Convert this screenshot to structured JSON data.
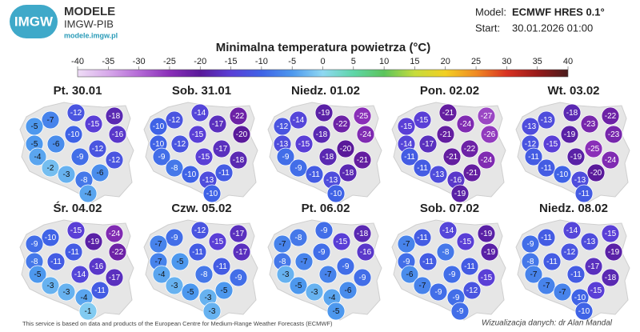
{
  "header": {
    "logo_text": "IMGW",
    "brand": "MODELE",
    "org": "IMGW-PIB",
    "url": "modele.imgw.pl",
    "model_label": "Model:",
    "model": "ECMWF HRES 0.1°",
    "start_label": "Start:",
    "start": "30.01.2026 01:00"
  },
  "chart_data": {
    "type": "map",
    "title": "Minimalna temperatura powietrza (°C)",
    "colorbar": {
      "ticks": [
        -40,
        -35,
        -30,
        -25,
        -20,
        -15,
        -10,
        -5,
        0,
        5,
        10,
        15,
        20,
        25,
        30,
        35,
        40
      ],
      "colors": [
        "#eedcf6",
        "#d7a9ea",
        "#b46ad6",
        "#8a2fb8",
        "#5a1a9a",
        "#5a3fd6",
        "#3f63e6",
        "#4d98ee",
        "#8fd8f2",
        "#5fd6a8",
        "#5cc45c",
        "#c6dc3c",
        "#f2cf22",
        "#f08a22",
        "#d83222",
        "#981a1a",
        "#4a1c1c"
      ]
    },
    "panels": [
      {
        "label": "Pt. 30.01",
        "values": [
          -7,
          -12,
          -18,
          -5,
          -15,
          -16,
          -10,
          -5,
          -6,
          -12,
          -4,
          -9,
          -12,
          -2,
          -3,
          -8,
          -6,
          -4
        ]
      },
      {
        "label": "Sob. 31.01",
        "values": [
          -12,
          -14,
          -22,
          -10,
          -17,
          -20,
          -15,
          -10,
          -12,
          -17,
          -9,
          -15,
          -18,
          -8,
          -10,
          -13,
          -11,
          -10
        ]
      },
      {
        "label": "Niedz. 01.02",
        "values": [
          -14,
          -19,
          -25,
          -12,
          -22,
          -24,
          -18,
          -13,
          -15,
          -20,
          -9,
          -18,
          -21,
          -9,
          -11,
          -13,
          -18,
          -10
        ]
      },
      {
        "label": "Pon. 02.02",
        "values": [
          -15,
          -21,
          -27,
          -15,
          -24,
          -26,
          -21,
          -14,
          -17,
          -22,
          -11,
          -21,
          -24,
          -11,
          -13,
          -16,
          -21,
          -19
        ]
      },
      {
        "label": "Wt. 03.02",
        "values": [
          -13,
          -18,
          -22,
          -13,
          -23,
          -23,
          -19,
          -12,
          -15,
          -25,
          -11,
          -19,
          -24,
          -11,
          -10,
          -13,
          -20,
          -11
        ]
      },
      {
        "label": "Śr. 04.02",
        "values": [
          -10,
          -15,
          -24,
          -9,
          -19,
          -22,
          -11,
          -8,
          -11,
          -16,
          -5,
          -14,
          -17,
          -3,
          -3,
          -4,
          -11,
          -1
        ]
      },
      {
        "label": "Czw. 05.02",
        "values": [
          -9,
          -12,
          -17,
          -7,
          -15,
          -17,
          -11,
          -7,
          -5,
          -11,
          -4,
          -8,
          -9,
          -3,
          -5,
          -3,
          -5,
          -3
        ]
      },
      {
        "label": "Pt. 06.02",
        "values": [
          -8,
          -9,
          -18,
          -7,
          -15,
          -16,
          -9,
          -8,
          -7,
          -9,
          -3,
          -7,
          -9,
          -5,
          -3,
          -4,
          -6,
          -5
        ]
      },
      {
        "label": "Sob. 07.02",
        "values": [
          -11,
          -14,
          -19,
          -7,
          -15,
          -19,
          -8,
          -9,
          -11,
          -11,
          -6,
          -9,
          -15,
          -7,
          -9,
          -9,
          -12,
          -9
        ]
      },
      {
        "label": "Niedz. 08.02",
        "values": [
          -11,
          -14,
          -15,
          -9,
          -13,
          -19,
          -12,
          -8,
          -11,
          -17,
          -7,
          -11,
          -18,
          -7,
          -7,
          -10,
          -15,
          -10
        ]
      }
    ]
  },
  "footer": {
    "source": "This service is based on data and products of the European Centre for Medium-Range Weather Forecasts (ECMWF)",
    "credit": "Wizualizacja danych: dr Alan Mandal"
  }
}
